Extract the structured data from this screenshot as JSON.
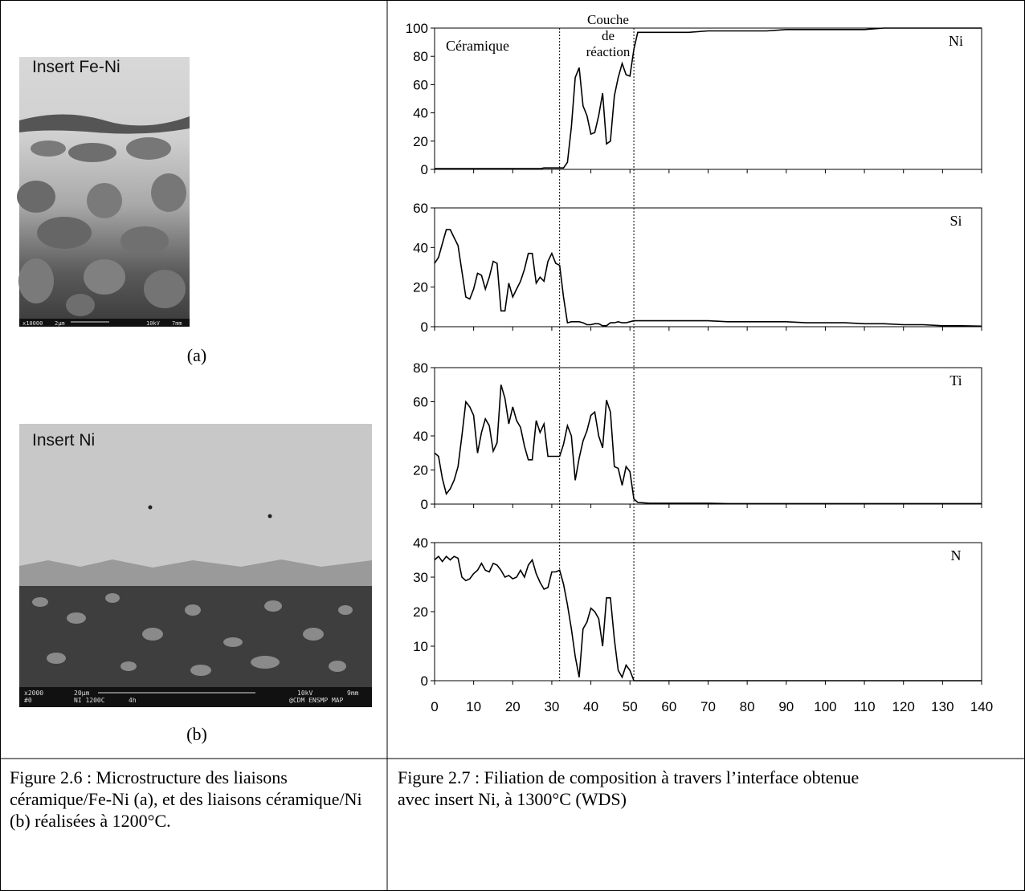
{
  "figure_a": {
    "label": "Insert Fe-Ni",
    "scale_bar": [
      "x10000",
      "2μm",
      "10kV",
      "7mm"
    ],
    "caption": "(a)"
  },
  "figure_b": {
    "label": "Insert Ni",
    "scale_bar": [
      "x2000",
      "#0",
      "20μm",
      "NI 1200C",
      "4h",
      "10kV",
      "@CDM ENSMP MAP",
      "9mm"
    ],
    "caption": "(b)"
  },
  "annotations": {
    "ceramic": "Céramique",
    "reaction_layer": [
      "Couche",
      "de",
      "réaction"
    ],
    "interfaces": [
      32,
      51
    ]
  },
  "chart_data": [
    {
      "type": "line",
      "label": "Ni",
      "color": "#000000",
      "xlim": [
        0,
        140
      ],
      "xticks": [
        0,
        10,
        20,
        30,
        40,
        50,
        60,
        70,
        80,
        90,
        100,
        110,
        120,
        130,
        140
      ],
      "ylim": [
        0,
        100
      ],
      "yticks": [
        0,
        20,
        40,
        60,
        80,
        100
      ],
      "x": [
        0,
        1,
        2,
        3,
        4,
        5,
        6,
        7,
        8,
        9,
        10,
        11,
        12,
        13,
        14,
        15,
        16,
        17,
        18,
        19,
        20,
        21,
        22,
        23,
        24,
        25,
        26,
        27,
        28,
        29,
        30,
        31,
        32,
        33,
        34,
        35,
        36,
        37,
        38,
        39,
        40,
        41,
        42,
        43,
        44,
        45,
        46,
        47,
        48,
        49,
        50,
        51,
        52,
        55,
        60,
        65,
        70,
        75,
        80,
        85,
        90,
        95,
        100,
        105,
        110,
        115,
        120,
        125,
        130,
        135,
        140
      ],
      "values": [
        0.5,
        0.5,
        0.5,
        0.5,
        0.5,
        0.5,
        0.5,
        0.5,
        0.5,
        0.5,
        0.5,
        0.5,
        0.5,
        0.5,
        0.5,
        0.5,
        0.5,
        0.5,
        0.5,
        0.5,
        0.5,
        0.5,
        0.5,
        0.5,
        0.5,
        0.5,
        0.5,
        0.5,
        1,
        1,
        1,
        1,
        1,
        1,
        5,
        30,
        65,
        72,
        45,
        38,
        25,
        26,
        38,
        54,
        18,
        20,
        52,
        65,
        75,
        67,
        66,
        85,
        97,
        97,
        97,
        97,
        98,
        98,
        98,
        98,
        99,
        99,
        99,
        99,
        99,
        100,
        100,
        100,
        100,
        100,
        100
      ]
    },
    {
      "type": "line",
      "label": "Si",
      "color": "#000000",
      "xlim": [
        0,
        140
      ],
      "xticks": [
        0,
        10,
        20,
        30,
        40,
        50,
        60,
        70,
        80,
        90,
        100,
        110,
        120,
        130,
        140
      ],
      "ylim": [
        0,
        60
      ],
      "yticks": [
        0,
        20,
        40,
        60
      ],
      "x": [
        0,
        1,
        2,
        3,
        4,
        5,
        6,
        7,
        8,
        9,
        10,
        11,
        12,
        13,
        14,
        15,
        16,
        17,
        18,
        19,
        20,
        21,
        22,
        23,
        24,
        25,
        26,
        27,
        28,
        29,
        30,
        31,
        32,
        33,
        34,
        35,
        36,
        37,
        38,
        39,
        40,
        41,
        42,
        43,
        44,
        45,
        46,
        47,
        48,
        49,
        50,
        51,
        52,
        55,
        60,
        65,
        70,
        75,
        80,
        85,
        90,
        95,
        100,
        105,
        110,
        115,
        120,
        125,
        130,
        135,
        140
      ],
      "values": [
        32,
        35,
        42,
        49,
        49,
        45,
        41,
        28,
        15,
        14,
        19,
        27,
        26,
        19,
        25,
        33,
        32,
        8,
        8,
        22,
        15,
        19,
        23,
        29,
        37,
        37,
        22,
        25,
        23,
        33,
        37,
        32,
        31,
        15,
        2,
        2.5,
        2.5,
        2.5,
        2,
        1,
        1,
        1.5,
        1.5,
        0.5,
        0.5,
        2,
        2,
        2.5,
        2,
        2,
        2.5,
        3,
        3,
        3,
        3,
        3,
        3,
        2.5,
        2.5,
        2.5,
        2.5,
        2,
        2,
        2,
        1.5,
        1.5,
        1,
        1,
        0.5,
        0.5,
        0.3
      ]
    },
    {
      "type": "line",
      "label": "Ti",
      "color": "#000000",
      "xlim": [
        0,
        140
      ],
      "xticks": [
        0,
        10,
        20,
        30,
        40,
        50,
        60,
        70,
        80,
        90,
        100,
        110,
        120,
        130,
        140
      ],
      "ylim": [
        0,
        80
      ],
      "yticks": [
        0,
        20,
        40,
        60,
        80
      ],
      "x": [
        0,
        1,
        2,
        3,
        4,
        5,
        6,
        7,
        8,
        9,
        10,
        11,
        12,
        13,
        14,
        15,
        16,
        17,
        18,
        19,
        20,
        21,
        22,
        23,
        24,
        25,
        26,
        27,
        28,
        29,
        30,
        31,
        32,
        33,
        34,
        35,
        36,
        37,
        38,
        39,
        40,
        41,
        42,
        43,
        44,
        45,
        46,
        47,
        48,
        49,
        50,
        51,
        52,
        55,
        60,
        65,
        70,
        75,
        80,
        85,
        90,
        95,
        100,
        105,
        110,
        115,
        120,
        125,
        130,
        135,
        140
      ],
      "values": [
        30,
        28,
        15,
        6,
        9,
        14,
        22,
        40,
        60,
        57,
        52,
        30,
        42,
        50,
        46,
        31,
        36,
        70,
        62,
        47,
        57,
        49,
        45,
        34,
        26,
        26,
        49,
        42,
        47,
        28,
        28,
        28,
        28,
        35,
        46,
        40,
        14,
        27,
        37,
        43,
        52,
        54,
        40,
        33,
        61,
        54,
        22,
        21,
        11,
        22,
        19,
        3,
        1,
        0.5,
        0.5,
        0.5,
        0.5,
        0.3,
        0.3,
        0.3,
        0.3,
        0.3,
        0.3,
        0.3,
        0.3,
        0.3,
        0.3,
        0.3,
        0.3,
        0.3,
        0.3
      ]
    },
    {
      "type": "line",
      "label": "N",
      "color": "#000000",
      "xlim": [
        0,
        140
      ],
      "xticks": [
        0,
        10,
        20,
        30,
        40,
        50,
        60,
        70,
        80,
        90,
        100,
        110,
        120,
        130,
        140
      ],
      "ylim": [
        0,
        40
      ],
      "yticks": [
        0,
        10,
        20,
        30,
        40
      ],
      "x": [
        0,
        1,
        2,
        3,
        4,
        5,
        6,
        7,
        8,
        9,
        10,
        11,
        12,
        13,
        14,
        15,
        16,
        17,
        18,
        19,
        20,
        21,
        22,
        23,
        24,
        25,
        26,
        27,
        28,
        29,
        30,
        31,
        32,
        33,
        34,
        35,
        36,
        37,
        38,
        39,
        40,
        41,
        42,
        43,
        44,
        45,
        46,
        47,
        48,
        49,
        50,
        51,
        52,
        55,
        60,
        65,
        70,
        75,
        80,
        85,
        90,
        95,
        100,
        105,
        110,
        115,
        120,
        125,
        130,
        135,
        140
      ],
      "values": [
        35,
        36,
        34.5,
        36,
        35,
        36,
        35.5,
        30,
        29,
        29.5,
        31,
        32,
        34,
        32,
        31.5,
        34,
        33.5,
        32,
        30,
        30.5,
        29.5,
        30,
        32,
        30,
        33.5,
        35,
        31,
        28.5,
        26.5,
        27,
        31.5,
        31.5,
        32,
        28,
        22,
        15,
        7,
        1,
        15,
        17,
        21,
        20,
        18,
        10,
        24,
        24,
        12,
        3,
        1,
        4.5,
        3,
        0,
        0,
        0,
        0,
        0,
        0,
        0,
        0,
        0,
        0,
        0,
        0,
        0,
        0,
        0,
        0,
        0,
        0,
        0,
        0
      ]
    }
  ],
  "captions": {
    "left": "Figure 2.6 : Microstructure des liaisons céramique/Fe-Ni (a), et des liaisons céramique/Ni (b) réalisées à 1200°C.",
    "right": "Figure 2.7 : Filiation de composition à travers l’interface obtenue avec insert Ni, à 1300°C (WDS)"
  }
}
